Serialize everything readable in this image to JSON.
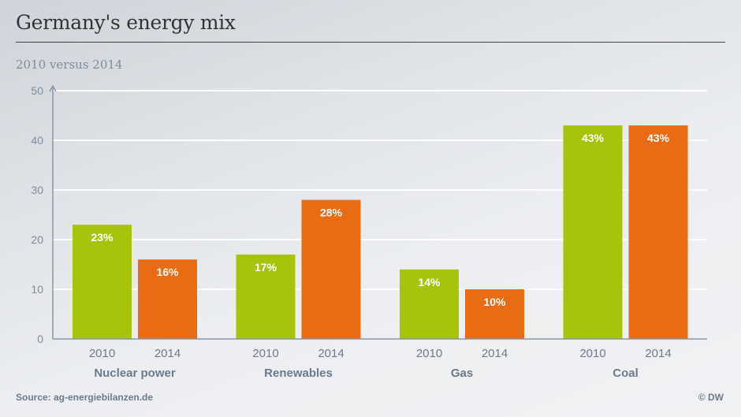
{
  "header": {
    "title": "Germany's energy mix",
    "subtitle": "2010 versus 2014"
  },
  "footer": {
    "source": "Source: ag-energiebilanzen.de",
    "credit": "© DW"
  },
  "colors": {
    "series_2010": "#a8c40a",
    "series_2014": "#e96b14",
    "axis": "#8797a6",
    "grid": "#ffffff"
  },
  "chart_data": {
    "type": "bar",
    "title": "Germany's energy mix",
    "subtitle": "2010 versus 2014",
    "xlabel": "",
    "ylabel": "",
    "ylim": [
      0,
      50
    ],
    "yticks": [
      0,
      10,
      20,
      30,
      40,
      50
    ],
    "grid": true,
    "categories": [
      "Nuclear power",
      "Renewables",
      "Gas",
      "Coal"
    ],
    "series": [
      {
        "name": "2010",
        "values": [
          23,
          17,
          14,
          43
        ],
        "labels": [
          "23%",
          "17%",
          "14%",
          "43%"
        ]
      },
      {
        "name": "2014",
        "values": [
          16,
          28,
          10,
          43
        ],
        "labels": [
          "16%",
          "28%",
          "10%",
          "43%"
        ]
      }
    ]
  }
}
